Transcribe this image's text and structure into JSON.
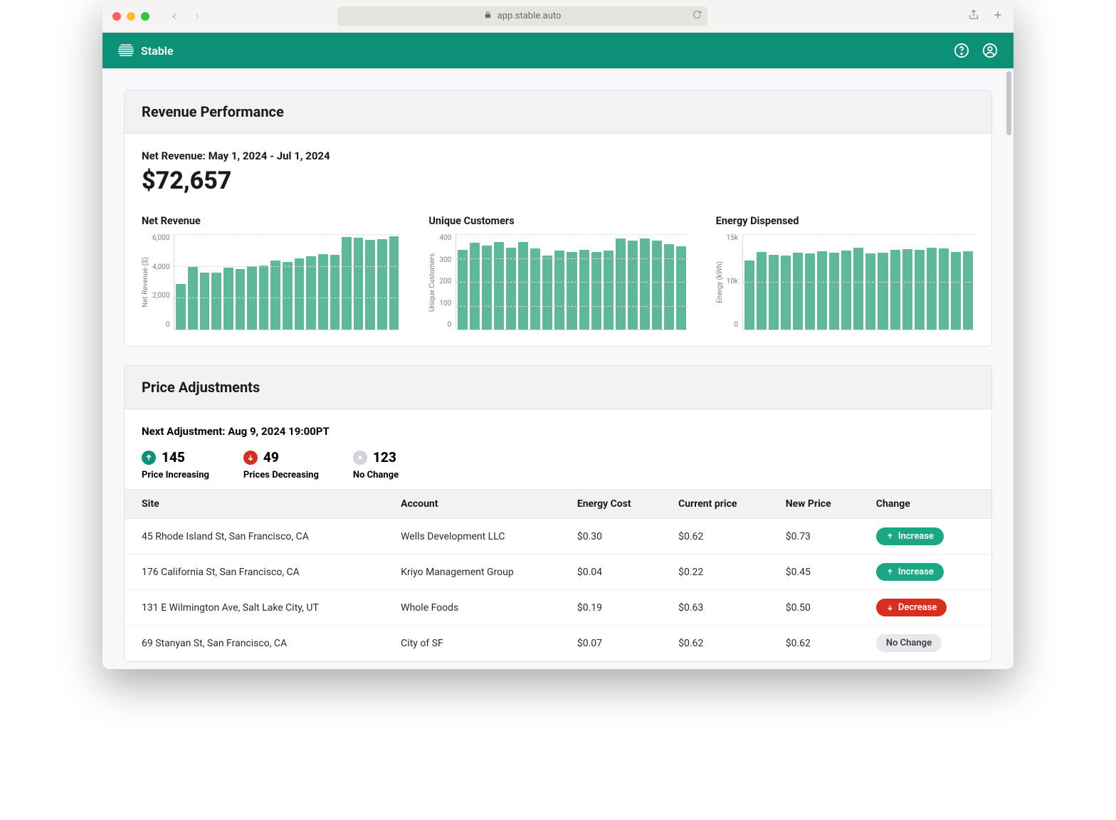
{
  "browser": {
    "url": "app.stable.auto"
  },
  "app": {
    "name": "Stable",
    "accent_color": "#0d9078"
  },
  "revenue": {
    "card_title": "Revenue Performance",
    "subtitle": "Net Revenue: May 1, 2024 - Jul 1, 2024",
    "amount": "$72,657",
    "charts": [
      {
        "title": "Net Revenue",
        "ylabel": "Net Revenue ($)",
        "type": "bar",
        "bar_color": "#5eb89a",
        "grid_color": "#d9dbde",
        "ylim": [
          0,
          6500
        ],
        "yticks": [
          "6,000",
          "4,000",
          "2,000",
          "0"
        ],
        "values": [
          3100,
          4250,
          3900,
          3900,
          4200,
          4100,
          4300,
          4350,
          4700,
          4600,
          4850,
          5000,
          5150,
          5100,
          6300,
          6250,
          6100,
          6150,
          6350
        ]
      },
      {
        "title": "Unique Customers",
        "ylabel": "Unique Customers",
        "type": "bar",
        "bar_color": "#5eb89a",
        "grid_color": "#d9dbde",
        "ylim": [
          0,
          430
        ],
        "yticks": [
          "400",
          "300",
          "200",
          "100",
          "0"
        ],
        "values": [
          360,
          390,
          380,
          395,
          370,
          395,
          365,
          335,
          355,
          350,
          360,
          350,
          355,
          410,
          400,
          410,
          400,
          385,
          375
        ]
      },
      {
        "title": "Energy Dispensed",
        "ylabel": "Energy (kWh)",
        "type": "bar",
        "bar_color": "#5eb89a",
        "grid_color": "#d9dbde",
        "ylim": [
          0,
          15500
        ],
        "yticks": [
          "15k",
          "10k",
          "0"
        ],
        "values": [
          11200,
          12600,
          12200,
          12000,
          12500,
          12400,
          12700,
          12500,
          12800,
          13300,
          12400,
          12500,
          13000,
          13100,
          12900,
          13300,
          13200,
          12600,
          12700
        ]
      }
    ]
  },
  "price_adjustments": {
    "card_title": "Price Adjustments",
    "next_label": "Next Adjustment: Aug 9, 2024 19:00PT",
    "stats": {
      "increasing": {
        "value": "145",
        "label": "Price Increasing",
        "color": "#0d9078"
      },
      "decreasing": {
        "value": "49",
        "label": "Prices Decreasing",
        "color": "#d92d20"
      },
      "nochange": {
        "value": "123",
        "label": "No Change",
        "color": "#d1d4d8"
      }
    },
    "columns": [
      "Site",
      "Account",
      "Energy Cost",
      "Current price",
      "New Price",
      "Change"
    ],
    "change_labels": {
      "increase": "Increase",
      "decrease": "Decrease",
      "nochange": "No Change"
    },
    "rows": [
      {
        "site": "45 Rhode Island St, San Francisco, CA",
        "account": "Wells Development LLC",
        "energy": "$0.30",
        "current": "$0.62",
        "new": "$0.73",
        "change": "increase"
      },
      {
        "site": "176 California St, San Francisco, CA",
        "account": "Kriyo Management Group",
        "energy": "$0.04",
        "current": "$0.22",
        "new": "$0.45",
        "change": "increase"
      },
      {
        "site": "131 E Wilmington Ave, Salt Lake City, UT",
        "account": "Whole Foods",
        "energy": "$0.19",
        "current": "$0.63",
        "new": "$0.50",
        "change": "decrease"
      },
      {
        "site": "69 Stanyan St, San Francisco, CA",
        "account": "City of SF",
        "energy": "$0.07",
        "current": "$0.62",
        "new": "$0.62",
        "change": "nochange"
      }
    ]
  }
}
